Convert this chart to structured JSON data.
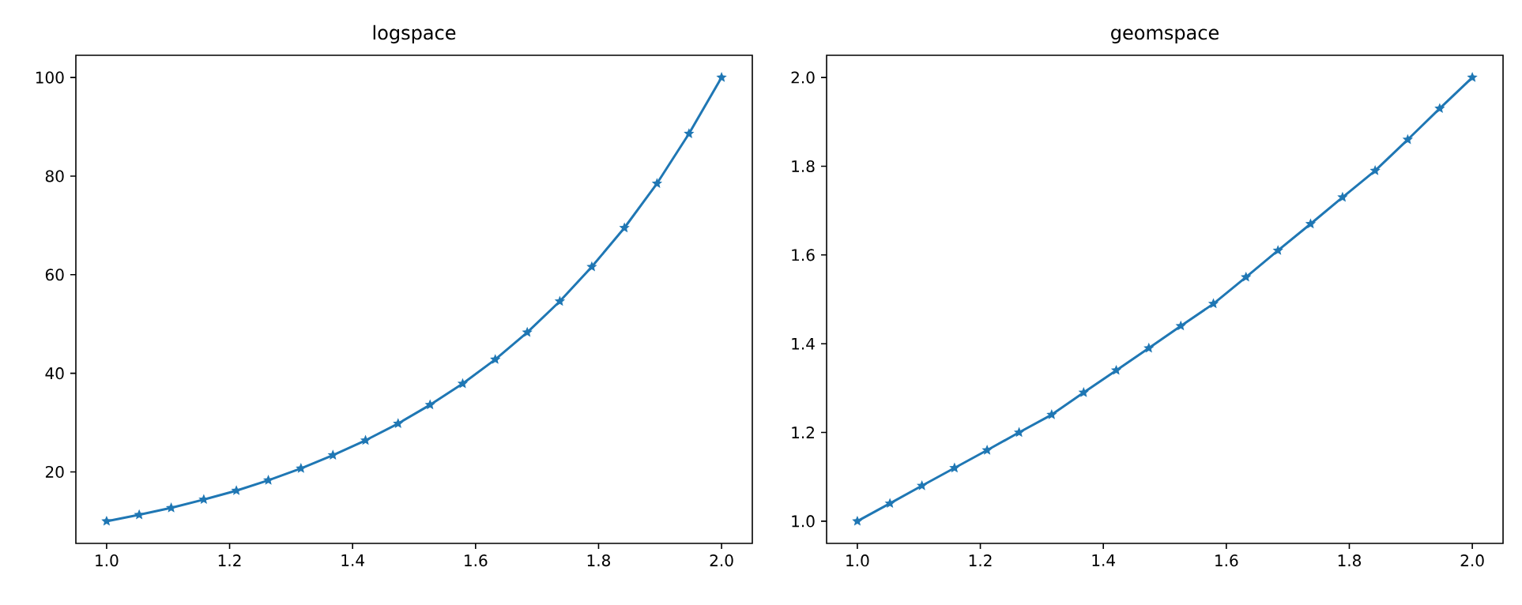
{
  "chart_data": [
    {
      "type": "line",
      "title": "logspace",
      "marker": "star",
      "color": "#1f77b4",
      "x": [
        1.0,
        1.053,
        1.105,
        1.158,
        1.211,
        1.263,
        1.316,
        1.368,
        1.421,
        1.474,
        1.526,
        1.579,
        1.632,
        1.684,
        1.737,
        1.789,
        1.842,
        1.895,
        1.947,
        2.0
      ],
      "values": [
        10,
        11.3,
        12.7,
        14.4,
        16.2,
        18.3,
        20.7,
        23.4,
        26.4,
        29.8,
        33.6,
        37.9,
        42.8,
        48.3,
        54.6,
        61.6,
        69.5,
        78.5,
        88.6,
        100
      ],
      "xlim": [
        0.95,
        2.05
      ],
      "ylim": [
        5.5,
        104.5
      ],
      "xticks": [
        {
          "value": 1.0,
          "label": "1.0"
        },
        {
          "value": 1.2,
          "label": "1.2"
        },
        {
          "value": 1.4,
          "label": "1.4"
        },
        {
          "value": 1.6,
          "label": "1.6"
        },
        {
          "value": 1.8,
          "label": "1.8"
        },
        {
          "value": 2.0,
          "label": "2.0"
        }
      ],
      "yticks": [
        20,
        40,
        60,
        80,
        100
      ]
    },
    {
      "type": "line",
      "title": "geomspace",
      "marker": "star",
      "color": "#1f77b4",
      "x": [
        1.0,
        1.053,
        1.105,
        1.158,
        1.211,
        1.263,
        1.316,
        1.368,
        1.421,
        1.474,
        1.526,
        1.579,
        1.632,
        1.684,
        1.737,
        1.789,
        1.842,
        1.895,
        1.947,
        2.0
      ],
      "values": [
        1.0,
        1.04,
        1.08,
        1.12,
        1.16,
        1.2,
        1.24,
        1.29,
        1.34,
        1.39,
        1.44,
        1.49,
        1.55,
        1.61,
        1.67,
        1.73,
        1.79,
        1.86,
        1.93,
        2.0
      ],
      "xlim": [
        0.95,
        2.05
      ],
      "ylim": [
        0.95,
        2.05
      ],
      "xticks": [
        {
          "value": 1.0,
          "label": "1.0"
        },
        {
          "value": 1.2,
          "label": "1.2"
        },
        {
          "value": 1.4,
          "label": "1.4"
        },
        {
          "value": 1.6,
          "label": "1.6"
        },
        {
          "value": 1.8,
          "label": "1.8"
        },
        {
          "value": 2.0,
          "label": "2.0"
        }
      ],
      "yticks": [
        {
          "value": 1.0,
          "label": "1.0"
        },
        {
          "value": 1.2,
          "label": "1.2"
        },
        {
          "value": 1.4,
          "label": "1.4"
        },
        {
          "value": 1.6,
          "label": "1.6"
        },
        {
          "value": 1.8,
          "label": "1.8"
        },
        {
          "value": 2.0,
          "label": "2.0"
        }
      ]
    }
  ]
}
